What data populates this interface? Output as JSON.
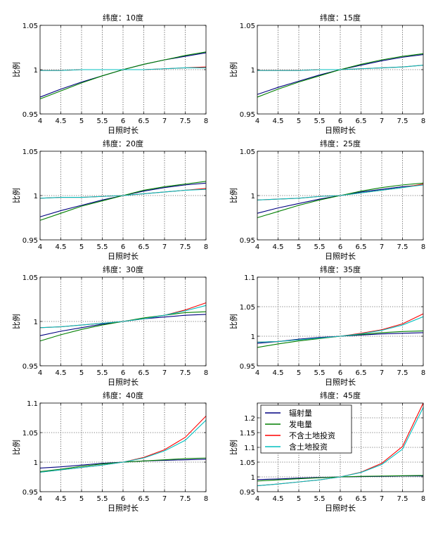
{
  "legend": {
    "position": "top-left",
    "entries": [
      {
        "name": "辐射量",
        "color": "#000080"
      },
      {
        "name": "发电量",
        "color": "#007f00"
      },
      {
        "name": "不含土地投资",
        "color": "#ff0000"
      },
      {
        "name": "含土地投资",
        "color": "#00bfbf"
      }
    ]
  },
  "chart_data": [
    {
      "type": "line",
      "title": "纬度：10度",
      "xlabel": "日照时长",
      "ylabel": "比例",
      "xlim": [
        4,
        8
      ],
      "ylim": [
        0.95,
        1.05
      ],
      "grid": true,
      "xticks": [
        "4",
        "4.5",
        "5",
        "5.5",
        "6",
        "6.5",
        "7",
        "7.5",
        "8"
      ],
      "yticks": [
        "0.95",
        "1",
        "1.05"
      ],
      "x": [
        4,
        4.5,
        5,
        5.5,
        6,
        6.5,
        7,
        7.5,
        8
      ],
      "series": [
        {
          "name": "辐射量",
          "color": "#000080",
          "values": [
            0.969,
            0.978,
            0.986,
            0.993,
            1.0,
            1.006,
            1.011,
            1.015,
            1.019
          ]
        },
        {
          "name": "发电量",
          "color": "#007f00",
          "values": [
            0.967,
            0.976,
            0.985,
            0.993,
            1.0,
            1.006,
            1.011,
            1.016,
            1.02
          ]
        },
        {
          "name": "不含土地投资",
          "color": "#ff0000",
          "values": [
            0.999,
            0.999,
            1.0,
            1.0,
            1.0,
            1.0,
            1.001,
            1.002,
            1.003
          ]
        },
        {
          "name": "含土地投资",
          "color": "#00bfbf",
          "values": [
            0.999,
            0.999,
            1.0,
            1.0,
            1.0,
            1.0,
            1.001,
            1.002,
            1.002
          ]
        }
      ]
    },
    {
      "type": "line",
      "title": "纬度：15度",
      "xlabel": "日照时长",
      "ylabel": "比例",
      "xlim": [
        4,
        8
      ],
      "ylim": [
        0.95,
        1.05
      ],
      "grid": true,
      "xticks": [
        "4",
        "4.5",
        "5",
        "5.5",
        "6",
        "6.5",
        "7",
        "7.5",
        "8"
      ],
      "yticks": [
        "0.95",
        "1",
        "1.05"
      ],
      "x": [
        4,
        4.5,
        5,
        5.5,
        6,
        6.5,
        7,
        7.5,
        8
      ],
      "series": [
        {
          "name": "辐射量",
          "color": "#000080",
          "values": [
            0.972,
            0.98,
            0.987,
            0.994,
            1.0,
            1.005,
            1.01,
            1.014,
            1.017
          ]
        },
        {
          "name": "发电量",
          "color": "#007f00",
          "values": [
            0.969,
            0.978,
            0.986,
            0.993,
            1.0,
            1.006,
            1.011,
            1.015,
            1.018
          ]
        },
        {
          "name": "不含土地投资",
          "color": "#ff0000",
          "values": [
            0.999,
            0.999,
            0.999,
            1.0,
            1.0,
            1.001,
            1.002,
            1.003,
            1.005
          ]
        },
        {
          "name": "含土地投资",
          "color": "#00bfbf",
          "values": [
            0.999,
            0.999,
            0.999,
            1.0,
            1.0,
            1.001,
            1.002,
            1.003,
            1.005
          ]
        }
      ]
    },
    {
      "type": "line",
      "title": "纬度：20度",
      "xlabel": "日照时长",
      "ylabel": "比例",
      "xlim": [
        4,
        8
      ],
      "ylim": [
        0.95,
        1.05
      ],
      "grid": true,
      "xticks": [
        "4",
        "4.5",
        "5",
        "5.5",
        "6",
        "6.5",
        "7",
        "7.5",
        "8"
      ],
      "yticks": [
        "0.95",
        "1",
        "1.05"
      ],
      "x": [
        4,
        4.5,
        5,
        5.5,
        6,
        6.5,
        7,
        7.5,
        8
      ],
      "series": [
        {
          "name": "辐射量",
          "color": "#000080",
          "values": [
            0.976,
            0.983,
            0.989,
            0.995,
            1.0,
            1.005,
            1.009,
            1.012,
            1.014
          ]
        },
        {
          "name": "发电量",
          "color": "#007f00",
          "values": [
            0.972,
            0.98,
            0.988,
            0.994,
            1.0,
            1.006,
            1.01,
            1.013,
            1.016
          ]
        },
        {
          "name": "不含土地投资",
          "color": "#ff0000",
          "values": [
            0.997,
            0.998,
            0.998,
            0.999,
            1.0,
            1.002,
            1.004,
            1.006,
            1.008
          ]
        },
        {
          "name": "含土地投资",
          "color": "#00bfbf",
          "values": [
            0.997,
            0.998,
            0.998,
            0.999,
            1.0,
            1.002,
            1.004,
            1.006,
            1.007
          ]
        }
      ]
    },
    {
      "type": "line",
      "title": "纬度：25度",
      "xlabel": "日照时长",
      "ylabel": "比例",
      "xlim": [
        4,
        8
      ],
      "ylim": [
        0.95,
        1.05
      ],
      "grid": true,
      "xticks": [
        "4",
        "4.5",
        "5",
        "5.5",
        "6",
        "6.5",
        "7",
        "7.5",
        "8"
      ],
      "yticks": [
        "0.95",
        "1",
        "1.05"
      ],
      "x": [
        4,
        4.5,
        5,
        5.5,
        6,
        6.5,
        7,
        7.5,
        8
      ],
      "series": [
        {
          "name": "辐射量",
          "color": "#000080",
          "values": [
            0.98,
            0.986,
            0.991,
            0.996,
            1.0,
            1.004,
            1.007,
            1.01,
            1.012
          ]
        },
        {
          "name": "发电量",
          "color": "#007f00",
          "values": [
            0.975,
            0.982,
            0.989,
            0.995,
            1.0,
            1.005,
            1.009,
            1.012,
            1.014
          ]
        },
        {
          "name": "不含土地投资",
          "color": "#ff0000",
          "values": [
            0.995,
            0.996,
            0.997,
            0.999,
            1.0,
            1.003,
            1.006,
            1.009,
            1.013
          ]
        },
        {
          "name": "含土地投资",
          "color": "#00bfbf",
          "values": [
            0.995,
            0.996,
            0.997,
            0.999,
            1.0,
            1.003,
            1.006,
            1.009,
            1.012
          ]
        }
      ]
    },
    {
      "type": "line",
      "title": "纬度：30度",
      "xlabel": "日照时长",
      "ylabel": "比例",
      "xlim": [
        4,
        8
      ],
      "ylim": [
        0.95,
        1.05
      ],
      "grid": true,
      "xticks": [
        "4",
        "4.5",
        "5",
        "5.5",
        "6",
        "6.5",
        "7",
        "7.5",
        "8"
      ],
      "yticks": [
        "0.95",
        "1",
        "1.05"
      ],
      "x": [
        4,
        4.5,
        5,
        5.5,
        6,
        6.5,
        7,
        7.5,
        8
      ],
      "series": [
        {
          "name": "辐射量",
          "color": "#000080",
          "values": [
            0.984,
            0.989,
            0.993,
            0.997,
            1.0,
            1.003,
            1.005,
            1.007,
            1.008
          ]
        },
        {
          "name": "发电量",
          "color": "#007f00",
          "values": [
            0.978,
            0.985,
            0.991,
            0.996,
            1.0,
            1.004,
            1.007,
            1.01,
            1.011
          ]
        },
        {
          "name": "不含土地投资",
          "color": "#ff0000",
          "values": [
            0.993,
            0.994,
            0.996,
            0.998,
            1.0,
            1.003,
            1.007,
            1.013,
            1.021
          ]
        },
        {
          "name": "含土地投资",
          "color": "#00bfbf",
          "values": [
            0.993,
            0.994,
            0.996,
            0.998,
            1.0,
            1.003,
            1.007,
            1.012,
            1.018
          ]
        }
      ]
    },
    {
      "type": "line",
      "title": "纬度：35度",
      "xlabel": "日照时长",
      "ylabel": "比例",
      "xlim": [
        4,
        8
      ],
      "ylim": [
        0.95,
        1.1
      ],
      "grid": true,
      "xticks": [
        "4",
        "4.5",
        "5",
        "5.5",
        "6",
        "6.5",
        "7",
        "7.5",
        "8"
      ],
      "yticks": [
        "0.95",
        "1",
        "1.05",
        "1.1"
      ],
      "x": [
        4,
        4.5,
        5,
        5.5,
        6,
        6.5,
        7,
        7.5,
        8
      ],
      "series": [
        {
          "name": "辐射量",
          "color": "#000080",
          "values": [
            0.988,
            0.991,
            0.995,
            0.998,
            1.0,
            1.002,
            1.004,
            1.005,
            1.006
          ]
        },
        {
          "name": "发电量",
          "color": "#007f00",
          "values": [
            0.981,
            0.987,
            0.992,
            0.996,
            1.0,
            1.003,
            1.006,
            1.008,
            1.009
          ]
        },
        {
          "name": "不含土地投资",
          "color": "#ff0000",
          "values": [
            0.99,
            0.991,
            0.994,
            0.997,
            1.0,
            1.005,
            1.011,
            1.021,
            1.038
          ]
        },
        {
          "name": "含土地投资",
          "color": "#00bfbf",
          "values": [
            0.99,
            0.991,
            0.994,
            0.997,
            1.0,
            1.004,
            1.01,
            1.019,
            1.033
          ]
        }
      ]
    },
    {
      "type": "line",
      "title": "纬度：40度",
      "xlabel": "日照时长",
      "ylabel": "比例",
      "xlim": [
        4,
        8
      ],
      "ylim": [
        0.95,
        1.1
      ],
      "grid": true,
      "xticks": [
        "4",
        "4.5",
        "5",
        "5.5",
        "6",
        "6.5",
        "7",
        "7.5",
        "8"
      ],
      "yticks": [
        "0.95",
        "1",
        "1.05",
        "1.1"
      ],
      "x": [
        4,
        4.5,
        5,
        5.5,
        6,
        6.5,
        7,
        7.5,
        8
      ],
      "series": [
        {
          "name": "辐射量",
          "color": "#000080",
          "values": [
            0.99,
            0.992,
            0.995,
            0.998,
            1.0,
            1.002,
            1.003,
            1.004,
            1.005
          ]
        },
        {
          "name": "发电量",
          "color": "#007f00",
          "values": [
            0.984,
            0.988,
            0.993,
            0.997,
            1.0,
            1.002,
            1.004,
            1.006,
            1.007
          ]
        },
        {
          "name": "不含土地投资",
          "color": "#ff0000",
          "values": [
            0.983,
            0.987,
            0.991,
            0.995,
            1.0,
            1.008,
            1.021,
            1.042,
            1.078
          ]
        },
        {
          "name": "含土地投资",
          "color": "#00bfbf",
          "values": [
            0.983,
            0.987,
            0.991,
            0.995,
            1.0,
            1.007,
            1.019,
            1.037,
            1.071
          ]
        }
      ]
    },
    {
      "type": "line",
      "title": "纬度：45度",
      "xlabel": "日照时长",
      "ylabel": "比例",
      "xlim": [
        4,
        8
      ],
      "ylim": [
        0.95,
        1.25
      ],
      "grid": true,
      "xticks": [
        "4",
        "4.5",
        "5",
        "5.5",
        "6",
        "6.5",
        "7",
        "7.5",
        "8"
      ],
      "yticks": [
        "0.95",
        "1",
        "1.05",
        "1.1",
        "1.15",
        "1.2"
      ],
      "x": [
        4,
        4.5,
        5,
        5.5,
        6,
        6.5,
        7,
        7.5,
        8
      ],
      "series": [
        {
          "name": "辐射量",
          "color": "#000080",
          "values": [
            0.991,
            0.993,
            0.996,
            0.998,
            1.0,
            1.001,
            1.002,
            1.003,
            1.003
          ]
        },
        {
          "name": "发电量",
          "color": "#007f00",
          "values": [
            0.986,
            0.99,
            0.994,
            0.997,
            1.0,
            1.002,
            1.003,
            1.004,
            1.005
          ]
        },
        {
          "name": "不含土地投资",
          "color": "#ff0000",
          "values": [
            0.97,
            0.976,
            0.983,
            0.99,
            1.0,
            1.016,
            1.046,
            1.103,
            1.25
          ]
        },
        {
          "name": "含土地投资",
          "color": "#00bfbf",
          "values": [
            0.97,
            0.976,
            0.983,
            0.99,
            1.0,
            1.015,
            1.042,
            1.094,
            1.235
          ]
        }
      ]
    }
  ]
}
